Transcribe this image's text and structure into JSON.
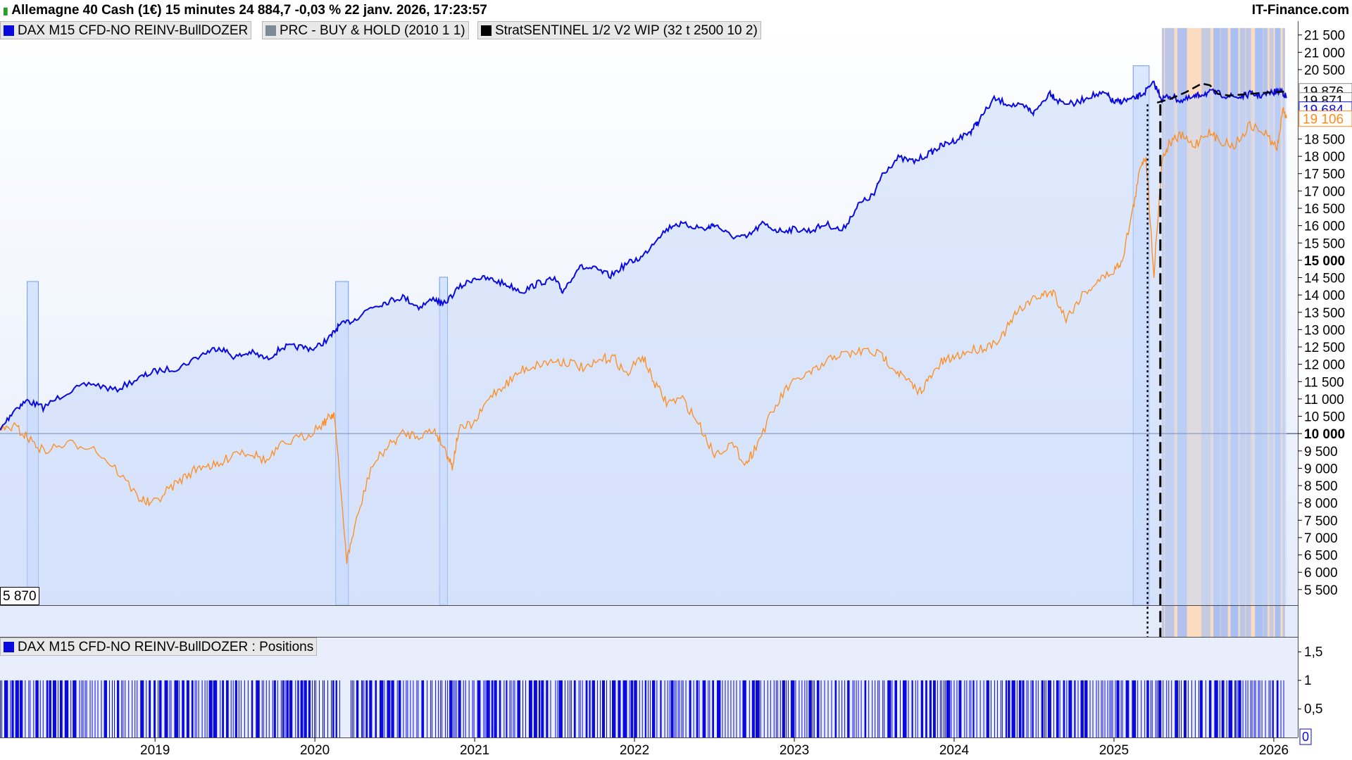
{
  "header": {
    "title": "Allemagne 40 Cash (1€) 15 minutes 24 884,7 -0,03 % 22 janv. 2026, 17:23:57",
    "brand": "IT-Finance.com"
  },
  "legend": [
    {
      "label": "DAX M15 CFD-NO REINV-BullDOZER",
      "color": "#0a0adf"
    },
    {
      "label": "PRC - BUY & HOLD (2010 1 1)",
      "color": "#7e8a96"
    },
    {
      "label": "StratSENTINEL 1/2 V2 WIP (32 t 2500 10 2)",
      "color": "#000000"
    }
  ],
  "lower_legend": {
    "label": "DAX M15 CFD-NO REINV-BullDOZER : Positions",
    "color": "#0a0adf"
  },
  "left_value_label": "5 870",
  "colors": {
    "equity": "#0a0adf",
    "buyhold": "#ff8c1a",
    "fill": "#d9e4fb",
    "zone": "#c4d8ff",
    "zone_border": "#6f9bf2",
    "orange_zone": "#fbdcc0"
  },
  "chart_data": [
    {
      "type": "line",
      "title": "",
      "xlabel": "",
      "ylabel": "",
      "x_ticks": [
        "2019",
        "2020",
        "2021",
        "2022",
        "2023",
        "2024",
        "2025",
        "2026"
      ],
      "x_range": [
        2018.03,
        2026.15
      ],
      "y_range": [
        5050,
        21900
      ],
      "y_ticks": [
        "21 500",
        "21 000",
        "20 500",
        "18 500",
        "18 000",
        "17 500",
        "17 000",
        "16 500",
        "16 000",
        "15 500",
        "15 000",
        "14 500",
        "14 000",
        "13 500",
        "13 000",
        "12 500",
        "12 000",
        "11 500",
        "11 000",
        "10 500",
        "10 000",
        "9 500",
        "9 000",
        "8 500",
        "8 000",
        "7 500",
        "7 000",
        "6 500",
        "6 000",
        "5 500"
      ],
      "bold_ticks": [
        "15 000",
        "10 000"
      ],
      "reference_line": 10000,
      "price_labels": [
        {
          "text": "19 876",
          "value": 19876,
          "color": "#000000",
          "bg": "#ffffff"
        },
        {
          "text": "19 871",
          "value": 19871,
          "color": "#000000",
          "bg": "#ffffff"
        },
        {
          "text": "19 684",
          "value": 19684,
          "color": "#0a0adf",
          "bg": "#ffffff"
        },
        {
          "text": "19 106",
          "value": 19106,
          "color": "#ff8c1a",
          "bg": "#ffffff"
        }
      ],
      "series": [
        {
          "name": "DAX M15 CFD-NO REINV-BullDOZER",
          "color": "#0a0adf",
          "x": [
            2018.03,
            2018.12,
            2018.2,
            2018.3,
            2018.45,
            2018.6,
            2018.75,
            2018.9,
            2019.0,
            2019.15,
            2019.3,
            2019.4,
            2019.5,
            2019.6,
            2019.7,
            2019.8,
            2019.9,
            2020.0,
            2020.1,
            2020.15,
            2020.25,
            2020.35,
            2020.45,
            2020.55,
            2020.65,
            2020.75,
            2020.8,
            2020.9,
            2021.0,
            2021.1,
            2021.2,
            2021.3,
            2021.4,
            2021.5,
            2021.55,
            2021.65,
            2021.75,
            2021.85,
            2021.95,
            2022.05,
            2022.15,
            2022.25,
            2022.35,
            2022.45,
            2022.5,
            2022.6,
            2022.7,
            2022.8,
            2022.9,
            2023.0,
            2023.1,
            2023.2,
            2023.3,
            2023.4,
            2023.5,
            2023.55,
            2023.65,
            2023.75,
            2023.85,
            2023.92,
            2024.0,
            2024.1,
            2024.15,
            2024.25,
            2024.35,
            2024.45,
            2024.5,
            2024.6,
            2024.65,
            2024.75,
            2024.85,
            2024.95,
            2025.0,
            2025.05,
            2025.12,
            2025.18,
            2025.25,
            2025.3,
            2025.35,
            2025.42,
            2025.5,
            2025.55,
            2025.62,
            2025.7,
            2025.78,
            2025.85,
            2025.92,
            2026.0,
            2026.05,
            2026.08
          ],
          "y": [
            10100,
            10700,
            10950,
            10750,
            11200,
            11450,
            11250,
            11600,
            11800,
            11900,
            12300,
            12500,
            12200,
            12350,
            12150,
            12500,
            12500,
            12450,
            12800,
            13100,
            13300,
            13650,
            13800,
            13950,
            13650,
            13900,
            13700,
            14200,
            14500,
            14450,
            14300,
            14100,
            14350,
            14450,
            14100,
            14800,
            14750,
            14550,
            14900,
            15100,
            15700,
            16050,
            16000,
            15900,
            16050,
            15700,
            15650,
            16050,
            15850,
            15900,
            15850,
            16050,
            15850,
            16600,
            16900,
            17500,
            17950,
            17850,
            18100,
            18300,
            18450,
            18700,
            19000,
            19650,
            19500,
            19400,
            19250,
            19850,
            19600,
            19500,
            19750,
            19800,
            19550,
            19600,
            19650,
            19800,
            20100,
            19650,
            19750,
            19600,
            19700,
            19800,
            19850,
            19750,
            19700,
            19800,
            19750,
            19850,
            19900,
            19684
          ]
        },
        {
          "name": "PRC - BUY & HOLD (2010 1 1)",
          "color": "#ff8c1a",
          "x": [
            2018.03,
            2018.12,
            2018.2,
            2018.3,
            2018.45,
            2018.6,
            2018.75,
            2018.9,
            2018.98,
            2019.1,
            2019.2,
            2019.3,
            2019.4,
            2019.5,
            2019.6,
            2019.7,
            2019.8,
            2019.95,
            2020.05,
            2020.1,
            2020.12,
            2020.2,
            2020.25,
            2020.35,
            2020.45,
            2020.55,
            2020.65,
            2020.75,
            2020.82,
            2020.86,
            2020.9,
            2021.0,
            2021.1,
            2021.2,
            2021.3,
            2021.4,
            2021.5,
            2021.6,
            2021.7,
            2021.8,
            2021.87,
            2021.95,
            2022.05,
            2022.12,
            2022.2,
            2022.3,
            2022.4,
            2022.5,
            2022.6,
            2022.7,
            2022.75,
            2022.85,
            2022.95,
            2023.05,
            2023.15,
            2023.25,
            2023.35,
            2023.45,
            2023.55,
            2023.62,
            2023.7,
            2023.78,
            2023.85,
            2023.92,
            2024.0,
            2024.1,
            2024.2,
            2024.3,
            2024.38,
            2024.45,
            2024.55,
            2024.62,
            2024.7,
            2024.8,
            2024.9,
            2025.0,
            2025.05,
            2025.12,
            2025.17,
            2025.2,
            2025.25,
            2025.3,
            2025.35,
            2025.42,
            2025.5,
            2025.58,
            2025.65,
            2025.75,
            2025.85,
            2025.95,
            2026.02,
            2026.06,
            2026.08
          ],
          "y": [
            10100,
            10200,
            9900,
            9500,
            9700,
            9650,
            9000,
            8150,
            7950,
            8450,
            8800,
            9100,
            9050,
            9500,
            9450,
            9200,
            9700,
            9950,
            10300,
            10500,
            10600,
            6350,
            7300,
            9000,
            9600,
            10000,
            9950,
            10100,
            9500,
            9050,
            10100,
            10300,
            11100,
            11450,
            11850,
            12000,
            12100,
            12050,
            11850,
            12150,
            12200,
            11700,
            12250,
            11500,
            10900,
            11000,
            10300,
            9400,
            9700,
            9150,
            9550,
            10500,
            11300,
            11650,
            11850,
            12250,
            12300,
            12400,
            12250,
            11900,
            11550,
            11200,
            11600,
            12050,
            12200,
            12400,
            12500,
            12800,
            13400,
            13750,
            14000,
            14100,
            13300,
            14000,
            14400,
            14700,
            15000,
            16500,
            17800,
            18000,
            14600,
            17900,
            18400,
            18600,
            18300,
            18700,
            18500,
            18300,
            18900,
            18650,
            18200,
            19400,
            19106
          ]
        },
        {
          "name": "StratSENTINEL 1/2 V2 WIP (32 t 2500 10 2)",
          "color": "#000000",
          "x": [
            2025.27,
            2025.35,
            2025.45,
            2025.55,
            2025.6,
            2025.65,
            2025.72,
            2025.8,
            2025.9,
            2026.0,
            2026.08
          ],
          "y": [
            19550,
            19650,
            19850,
            20100,
            20050,
            19800,
            19750,
            19780,
            19820,
            19850,
            19871
          ]
        }
      ],
      "zones": [
        {
          "from": 2018.2,
          "to": 2018.27
        },
        {
          "from": 2020.13,
          "to": 2020.21
        },
        {
          "from": 2020.78,
          "to": 2020.83
        },
        {
          "from": 2025.12,
          "to": 2025.22
        }
      ],
      "dense_region": {
        "from": 2025.3,
        "to": 2026.07
      },
      "vertical_markers": [
        {
          "x": 2025.21,
          "style": "dotted"
        },
        {
          "x": 2025.29,
          "style": "dashed"
        }
      ]
    },
    {
      "type": "bar",
      "title": "DAX M15 CFD-NO REINV-BullDOZER : Positions",
      "y_range": [
        0,
        1.75
      ],
      "y_ticks": [
        "1,5",
        "1",
        "0,5"
      ],
      "current_value": "0",
      "gaps": [
        {
          "from": 2020.17,
          "to": 2020.22
        },
        {
          "from": 2021.48,
          "to": 2021.5
        }
      ]
    }
  ]
}
